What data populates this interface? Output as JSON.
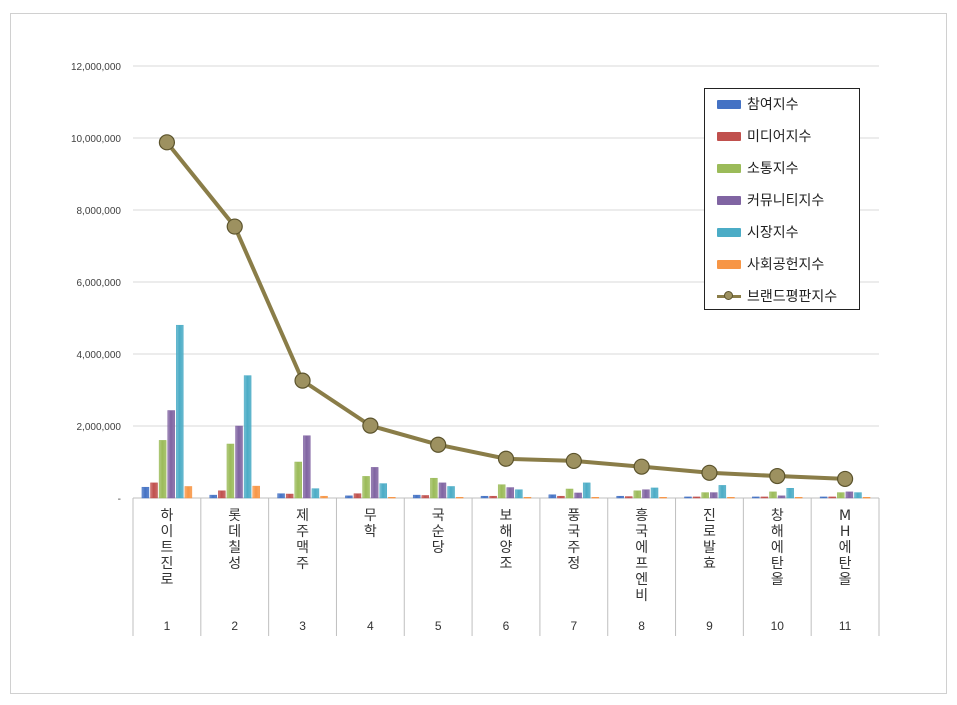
{
  "chart_data": {
    "type": "bar",
    "categories": [
      "1",
      "2",
      "3",
      "4",
      "5",
      "6",
      "7",
      "8",
      "9",
      "10",
      "11"
    ],
    "category_names": [
      "하이트진로",
      "롯데칠성",
      "제주맥주",
      "무학",
      "국순당",
      "보해양조",
      "풍국주정",
      "흥국에프엔비",
      "진로발효",
      "창해에탄올",
      "MH에탄올"
    ],
    "y_ticks": [
      "-",
      "2,000,000",
      "4,000,000",
      "6,000,000",
      "8,000,000",
      "10,000,000",
      "12,000,000"
    ],
    "ylim": [
      0,
      12000000
    ],
    "grid": true,
    "legend_position": "top-right",
    "series": [
      {
        "name": "참여지수",
        "type": "bar",
        "color": "#4472c4",
        "values": [
          300000,
          80000,
          120000,
          60000,
          80000,
          50000,
          90000,
          50000,
          30000,
          30000,
          30000
        ]
      },
      {
        "name": "미디어지수",
        "type": "bar",
        "color": "#c0504d",
        "values": [
          420000,
          200000,
          110000,
          120000,
          70000,
          50000,
          50000,
          40000,
          30000,
          30000,
          30000
        ]
      },
      {
        "name": "소통지수",
        "type": "bar",
        "color": "#9bbb59",
        "values": [
          1600000,
          1500000,
          1000000,
          600000,
          550000,
          370000,
          250000,
          200000,
          150000,
          170000,
          150000
        ]
      },
      {
        "name": "커뮤니티지수",
        "type": "bar",
        "color": "#8064a2",
        "values": [
          2430000,
          2000000,
          1730000,
          850000,
          420000,
          290000,
          140000,
          230000,
          150000,
          60000,
          170000
        ]
      },
      {
        "name": "시장지수",
        "type": "bar",
        "color": "#4bacc6",
        "values": [
          4800000,
          3400000,
          260000,
          400000,
          320000,
          230000,
          420000,
          280000,
          350000,
          270000,
          150000
        ]
      },
      {
        "name": "사회공헌지수",
        "type": "bar",
        "color": "#f79646",
        "values": [
          320000,
          330000,
          50000,
          20000,
          20000,
          20000,
          20000,
          20000,
          20000,
          20000,
          20000
        ]
      },
      {
        "name": "브랜드평판지수",
        "type": "line",
        "color": "#8a7d48",
        "values": [
          9880000,
          7540000,
          3260000,
          2010000,
          1480000,
          1090000,
          1030000,
          870000,
          700000,
          610000,
          530000
        ]
      }
    ]
  }
}
